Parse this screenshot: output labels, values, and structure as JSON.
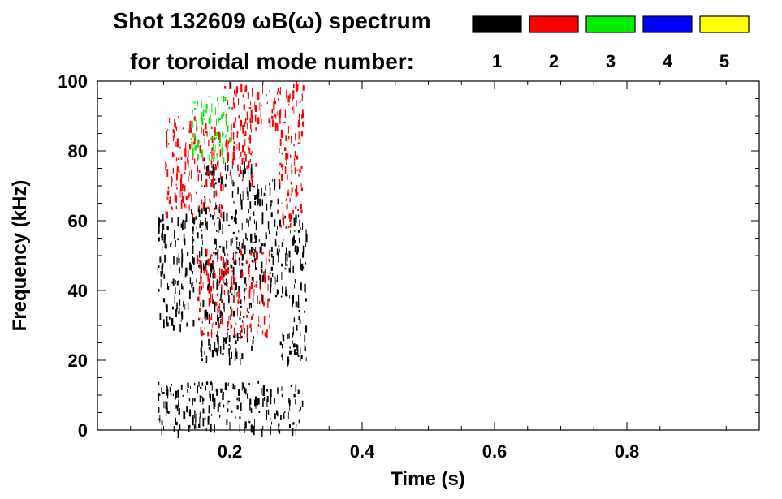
{
  "chart_data": {
    "type": "heatmap",
    "title_line1": "Shot 132609 ωB(ω) spectrum",
    "title_line2": "for toroidal mode number:",
    "xlabel": "Time (s)",
    "ylabel": "Frequency (kHz)",
    "xlim": [
      0.0,
      1.0
    ],
    "ylim": [
      0,
      100
    ],
    "x_ticks": [
      0.2,
      0.4,
      0.6,
      0.8
    ],
    "x_tick_labels": [
      "0.2",
      "0.4",
      "0.6",
      "0.8"
    ],
    "y_ticks": [
      0,
      20,
      40,
      60,
      80,
      100
    ],
    "y_tick_labels": [
      "0",
      "20",
      "40",
      "60",
      "80",
      "100"
    ],
    "legend": [
      {
        "label": "1",
        "color": "#000000"
      },
      {
        "label": "2",
        "color": "#ff0000"
      },
      {
        "label": "3",
        "color": "#00ee00"
      },
      {
        "label": "4",
        "color": "#0000ff"
      },
      {
        "label": "5",
        "color": "#ffff00"
      }
    ],
    "series": [
      {
        "name": "n=1",
        "color": "#000000",
        "regions": [
          {
            "t": [
              0.09,
              0.145
            ],
            "f": [
              30,
              62
            ]
          },
          {
            "t": [
              0.14,
              0.16
            ],
            "f": [
              42,
              65
            ]
          },
          {
            "t": [
              0.155,
              0.235
            ],
            "f": [
              20,
              78
            ]
          },
          {
            "t": [
              0.235,
              0.275
            ],
            "f": [
              38,
              72
            ]
          },
          {
            "t": [
              0.275,
              0.315
            ],
            "f": [
              20,
              62
            ]
          },
          {
            "t": [
              0.09,
              0.31
            ],
            "f": [
              0,
              14
            ]
          }
        ]
      },
      {
        "name": "n=2",
        "color": "#ff0000",
        "regions": [
          {
            "t": [
              0.1,
              0.19
            ],
            "f": [
              62,
              90
            ]
          },
          {
            "t": [
              0.19,
              0.24
            ],
            "f": [
              72,
              100
            ]
          },
          {
            "t": [
              0.24,
              0.275
            ],
            "f": [
              88,
              100
            ]
          },
          {
            "t": [
              0.27,
              0.31
            ],
            "f": [
              58,
              100
            ]
          },
          {
            "t": [
              0.15,
              0.26
            ],
            "f": [
              28,
              52
            ]
          }
        ]
      },
      {
        "name": "n=3",
        "color": "#00ee00",
        "regions": [
          {
            "t": [
              0.14,
              0.2
            ],
            "f": [
              78,
              96
            ]
          }
        ]
      }
    ]
  }
}
